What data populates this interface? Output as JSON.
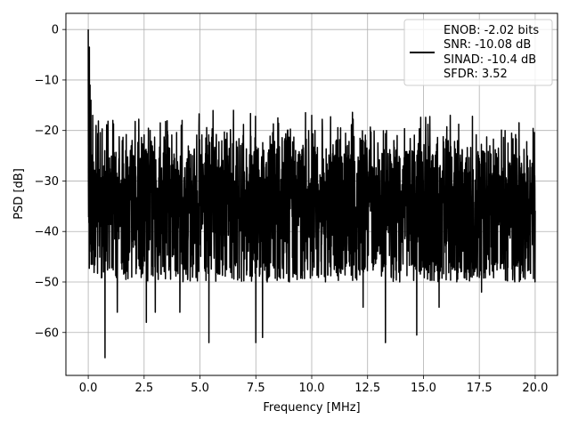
{
  "chart_data": {
    "type": "line",
    "xlabel": "Frequency [MHz]",
    "ylabel": "PSD [dB]",
    "xlim": [
      -1.0,
      21.0
    ],
    "ylim": [
      -68.5,
      3.2
    ],
    "x_ticks": [
      0.0,
      2.5,
      5.0,
      7.5,
      10.0,
      12.5,
      15.0,
      17.5,
      20.0
    ],
    "x_tick_labels": [
      "0.0",
      "2.5",
      "5.0",
      "7.5",
      "10.0",
      "12.5",
      "15.0",
      "17.5",
      "20.0"
    ],
    "y_ticks": [
      0,
      -10,
      -20,
      -30,
      -40,
      -50,
      -60
    ],
    "y_tick_labels": [
      "0",
      "−10",
      "−20",
      "−30",
      "−40",
      "−50",
      "−60"
    ],
    "grid": true,
    "legend_position": "top-right",
    "legend_lines": [
      "ENOB: -2.02 bits",
      "SNR: -10.08 dB",
      "SINAD: -10.4 dB",
      "SFDR: 3.52"
    ],
    "series": [
      {
        "color": "#000000",
        "line_width": 1.5,
        "noise_floor_db": -31,
        "peaks": [
          [
            0.0,
            0.0
          ],
          [
            0.02,
            -7.0
          ],
          [
            0.05,
            -3.5
          ],
          [
            0.08,
            -11.0
          ],
          [
            0.12,
            -14.0
          ],
          [
            0.2,
            -17.0
          ],
          [
            0.35,
            -19.0
          ],
          [
            0.75,
            -65.0
          ],
          [
            1.3,
            -56.0
          ],
          [
            1.1,
            -18.0
          ],
          [
            2.1,
            -18.2
          ],
          [
            2.6,
            -58.0
          ],
          [
            3.0,
            -56.0
          ],
          [
            4.1,
            -56.0
          ],
          [
            4.2,
            -18.0
          ],
          [
            5.4,
            -62.0
          ],
          [
            6.5,
            -16.0
          ],
          [
            7.5,
            -62.0
          ],
          [
            7.8,
            -61.0
          ],
          [
            9.0,
            -50.0
          ],
          [
            10.0,
            -17.0
          ],
          [
            12.3,
            -55.0
          ],
          [
            13.3,
            -62.0
          ],
          [
            14.7,
            -60.5
          ],
          [
            15.7,
            -55.0
          ],
          [
            16.2,
            -17.0
          ],
          [
            17.6,
            -52.0
          ]
        ]
      }
    ]
  }
}
